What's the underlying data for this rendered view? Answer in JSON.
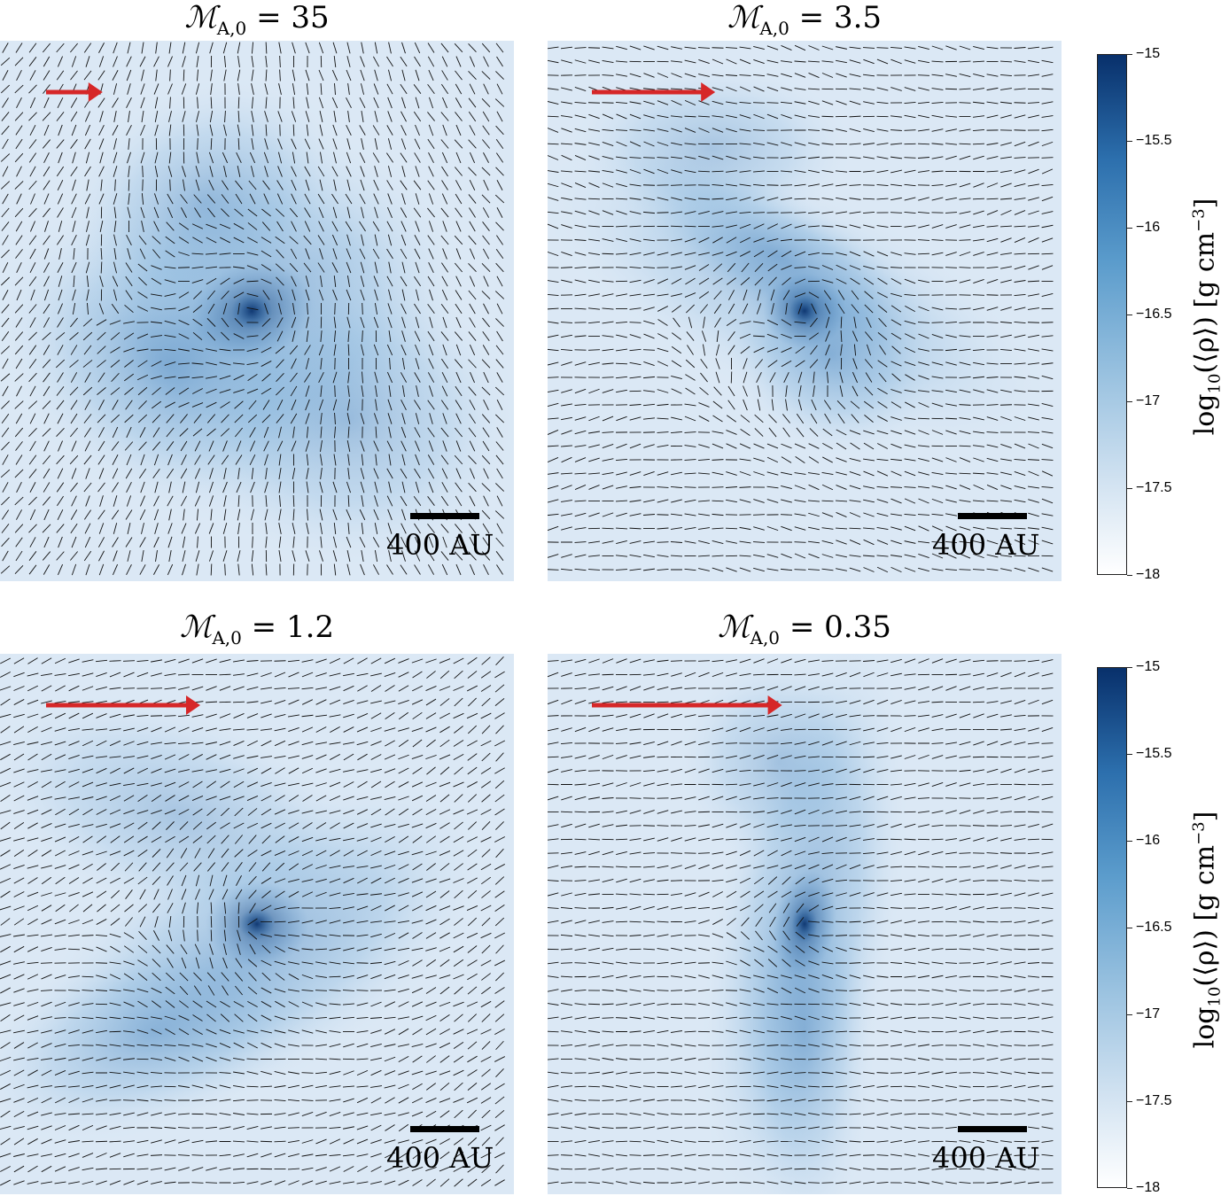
{
  "chart_data": {
    "type": "heatmap",
    "description_quantity": "projected density with magnetic field vectors",
    "panels": [
      {
        "title_symbol": "ℳ",
        "title_sub": "A,0",
        "title_value": "= 35",
        "mach": 35,
        "scalebar_label": "400 AU",
        "arrow_length_fraction": 0.11
      },
      {
        "title_symbol": "ℳ",
        "title_sub": "A,0",
        "title_value": "= 3.5",
        "mach": 3.5,
        "scalebar_label": "400 AU",
        "arrow_length_fraction": 0.24
      },
      {
        "title_symbol": "ℳ",
        "title_sub": "A,0",
        "title_value": "= 1.2",
        "mach": 1.2,
        "scalebar_label": "400 AU",
        "arrow_length_fraction": 0.3
      },
      {
        "title_symbol": "ℳ",
        "title_sub": "A,0",
        "title_value": "= 0.35",
        "mach": 0.35,
        "scalebar_label": "400 AU",
        "arrow_length_fraction": 0.37
      }
    ],
    "colorbar": {
      "label_prefix": "log",
      "label_sub": "10",
      "label_body": "(⟨ρ⟩)  [g cm",
      "label_sup": "−3",
      "label_end": "]",
      "range": [
        -18,
        -15
      ],
      "ticks": [
        "−15",
        "−15.5",
        "−16",
        "−16.5",
        "−17",
        "−17.5",
        "−18"
      ],
      "cmap": "Blues"
    }
  },
  "colors": {
    "arrow": "#d62728",
    "vector": "#111111",
    "density_max": "#08306b"
  }
}
